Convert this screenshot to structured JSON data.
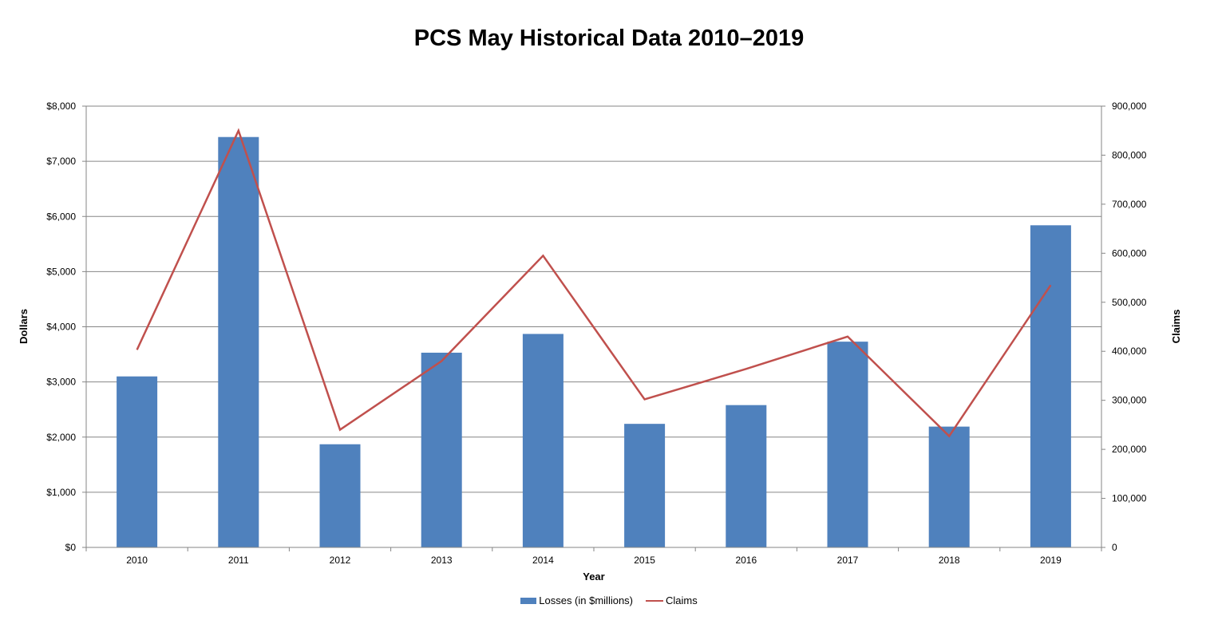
{
  "colors": {
    "bar": "#4f81bd",
    "line": "#c0504d",
    "grid": "#868686",
    "axis": "#868686"
  },
  "chart_data": {
    "type": "bar+line",
    "title": "PCS May Historical Data 2010–2019",
    "xlabel": "Year",
    "ylabel": "Dollars",
    "y2label": "Claims",
    "categories": [
      "2010",
      "2011",
      "2012",
      "2013",
      "2014",
      "2015",
      "2016",
      "2017",
      "2018",
      "2019"
    ],
    "ylim": [
      0,
      8000
    ],
    "y2lim": [
      0,
      900000
    ],
    "y_ticks": [
      "$0",
      "$1,000",
      "$2,000",
      "$3,000",
      "$4,000",
      "$5,000",
      "$6,000",
      "$7,000",
      "$8,000"
    ],
    "y2_ticks": [
      "0",
      "100,000",
      "200,000",
      "300,000",
      "400,000",
      "500,000",
      "600,000",
      "700,000",
      "800,000",
      "900,000"
    ],
    "grid": true,
    "legend_position": "bottom",
    "series": [
      {
        "name": "Losses (in $millions)",
        "type": "bar",
        "axis": "left",
        "values": [
          3100,
          7440,
          1870,
          3530,
          3870,
          2240,
          2580,
          3730,
          2190,
          5840
        ]
      },
      {
        "name": "Claims",
        "type": "line",
        "axis": "right",
        "values": [
          403000,
          850000,
          240000,
          380000,
          595000,
          302000,
          364000,
          430000,
          227000,
          535000
        ]
      }
    ]
  }
}
